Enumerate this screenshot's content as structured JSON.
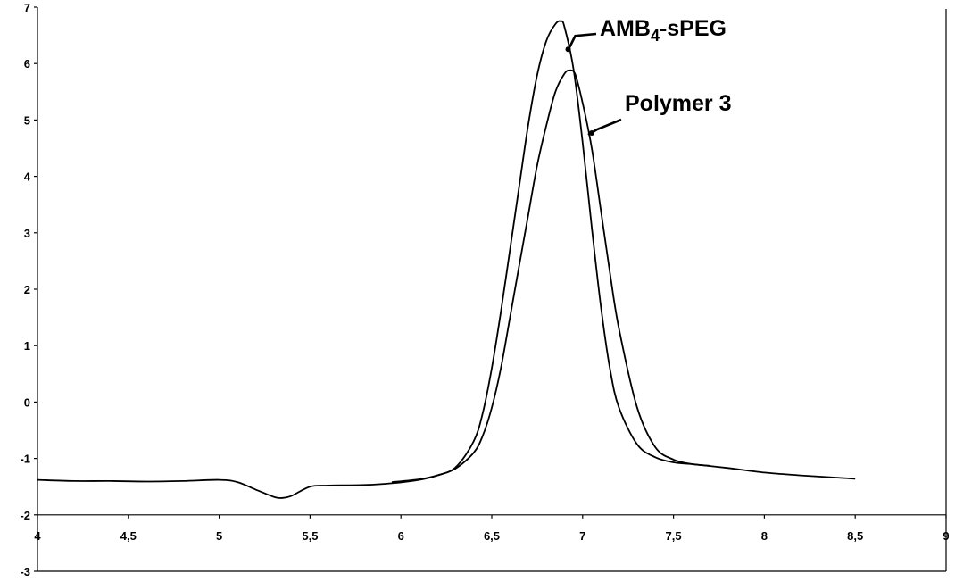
{
  "chart_data": {
    "type": "line",
    "title": "",
    "xlabel": "",
    "ylabel": "",
    "xlim": [
      4,
      9
    ],
    "ylim": [
      -3,
      7
    ],
    "x_ticks": [
      "4",
      "4,5",
      "5",
      "5,5",
      "6",
      "6,5",
      "7",
      "7,5",
      "8",
      "8,5",
      "9"
    ],
    "y_ticks": [
      "7",
      "6",
      "5",
      "4",
      "3",
      "2",
      "1",
      "0",
      "-1",
      "-2",
      "-3"
    ],
    "x_axis_crosses_y_at": -2,
    "grid": false,
    "legend": "none",
    "annotations": [
      {
        "text": "AMB",
        "subscript": "4",
        "suffix": "-sPEG",
        "points_to": [
          6.92,
          6.3
        ]
      },
      {
        "text": "Polymer 3",
        "points_to": [
          7.05,
          4.8
        ]
      }
    ],
    "series": [
      {
        "label_ref": "AMB4-sPEG",
        "x": [
          4.0,
          4.2,
          4.4,
          4.6,
          4.8,
          5.0,
          5.1,
          5.2,
          5.3,
          5.35,
          5.4,
          5.5,
          5.6,
          5.8,
          5.95,
          6.1,
          6.2,
          6.3,
          6.4,
          6.45,
          6.5,
          6.55,
          6.6,
          6.65,
          6.7,
          6.75,
          6.8,
          6.85,
          6.88,
          6.9,
          6.95,
          7.0,
          7.05,
          7.1,
          7.15,
          7.2,
          7.3,
          7.4,
          7.5,
          7.6,
          7.8,
          8.0,
          8.2,
          8.4,
          8.5
        ],
        "y": [
          -1.38,
          -1.4,
          -1.4,
          -1.41,
          -1.4,
          -1.38,
          -1.42,
          -1.55,
          -1.68,
          -1.7,
          -1.66,
          -1.5,
          -1.48,
          -1.47,
          -1.44,
          -1.38,
          -1.3,
          -1.16,
          -0.7,
          -0.2,
          0.6,
          1.6,
          2.7,
          3.8,
          4.9,
          5.8,
          6.4,
          6.7,
          6.75,
          6.65,
          5.9,
          4.6,
          3.1,
          1.7,
          0.6,
          -0.1,
          -0.75,
          -0.98,
          -1.07,
          -1.1,
          -1.17,
          -1.25,
          -1.3,
          -1.34,
          -1.36
        ]
      },
      {
        "label_ref": "Polymer 3",
        "x": [
          5.95,
          6.1,
          6.2,
          6.3,
          6.4,
          6.45,
          6.5,
          6.55,
          6.6,
          6.65,
          6.7,
          6.75,
          6.8,
          6.85,
          6.9,
          6.93,
          6.96,
          7.0,
          7.05,
          7.1,
          7.15,
          7.2,
          7.3,
          7.4,
          7.5,
          7.6,
          7.7
        ],
        "y": [
          -1.42,
          -1.37,
          -1.3,
          -1.18,
          -0.9,
          -0.6,
          -0.1,
          0.6,
          1.5,
          2.4,
          3.3,
          4.2,
          4.9,
          5.5,
          5.82,
          5.88,
          5.8,
          5.3,
          4.5,
          3.4,
          2.3,
          1.3,
          -0.1,
          -0.8,
          -1.02,
          -1.1,
          -1.13
        ]
      }
    ]
  }
}
